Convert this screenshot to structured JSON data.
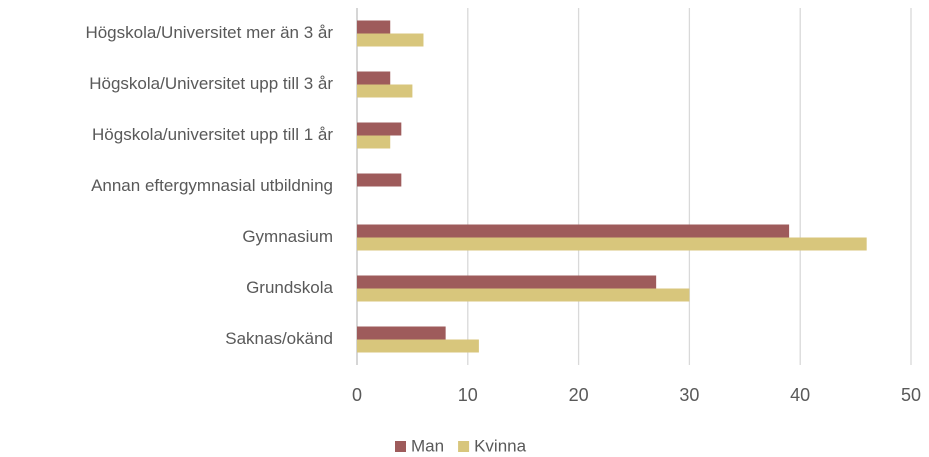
{
  "chart_data": {
    "type": "hbar",
    "categories": [
      "Högskola/Universitet mer än 3 år",
      "Högskola/Universitet upp till 3 år",
      "Högskola/universitet upp till 1 år",
      "Annan eftergymnasial utbildning",
      "Gymnasium",
      "Grundskola",
      "Saknas/okänd"
    ],
    "series": [
      {
        "name": "Man",
        "color": "#9e5b5b",
        "values": [
          3,
          3,
          4,
          4,
          39,
          27,
          8
        ]
      },
      {
        "name": "Kvinna",
        "color": "#d8c67c",
        "values": [
          6,
          5,
          3,
          0,
          46,
          30,
          11
        ]
      }
    ],
    "xlim": [
      0,
      50
    ],
    "xticks": [
      0,
      10,
      20,
      30,
      40,
      50
    ],
    "grid": true,
    "legend": "bottom"
  }
}
